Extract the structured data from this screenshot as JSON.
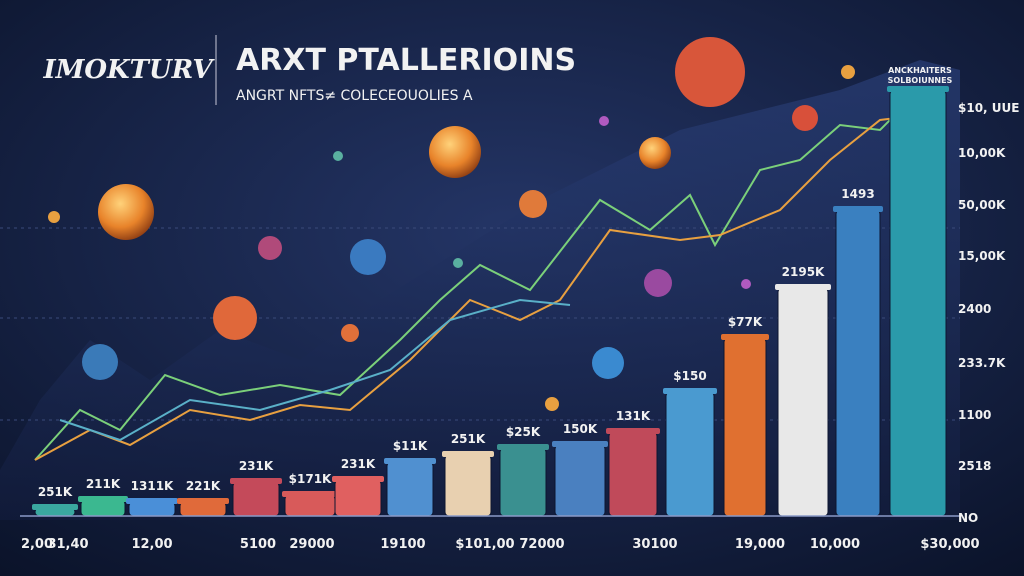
{
  "header": {
    "logo": "IMOKTURV",
    "title": "ARXT PTALLERIOINS",
    "subtitle": "ANGRT NFTS≠ COLECEOUOLIES A"
  },
  "corner_note": [
    "ANCKHAITERS",
    "SOLBOIUNNES"
  ],
  "bar_labels": [
    "251K",
    "211K",
    "1311K",
    "221K",
    "231K",
    "$171K",
    "231K",
    "$11K",
    "251K",
    "$25K",
    "150K",
    "131K",
    "$150",
    "$77K",
    "2195K",
    "1493"
  ],
  "axis_labels": [
    "$10, UUE",
    "10,00K",
    "50,00K",
    "15,00K",
    "2400",
    "233.7K",
    "1100",
    "2518",
    "NO"
  ],
  "bottom_labels": [
    "2,00",
    "31,40",
    "12,00",
    "5100",
    "29000",
    "19100",
    "$101,00",
    "72000",
    "30100",
    "19,000",
    "10,000",
    "$30,000"
  ]
}
